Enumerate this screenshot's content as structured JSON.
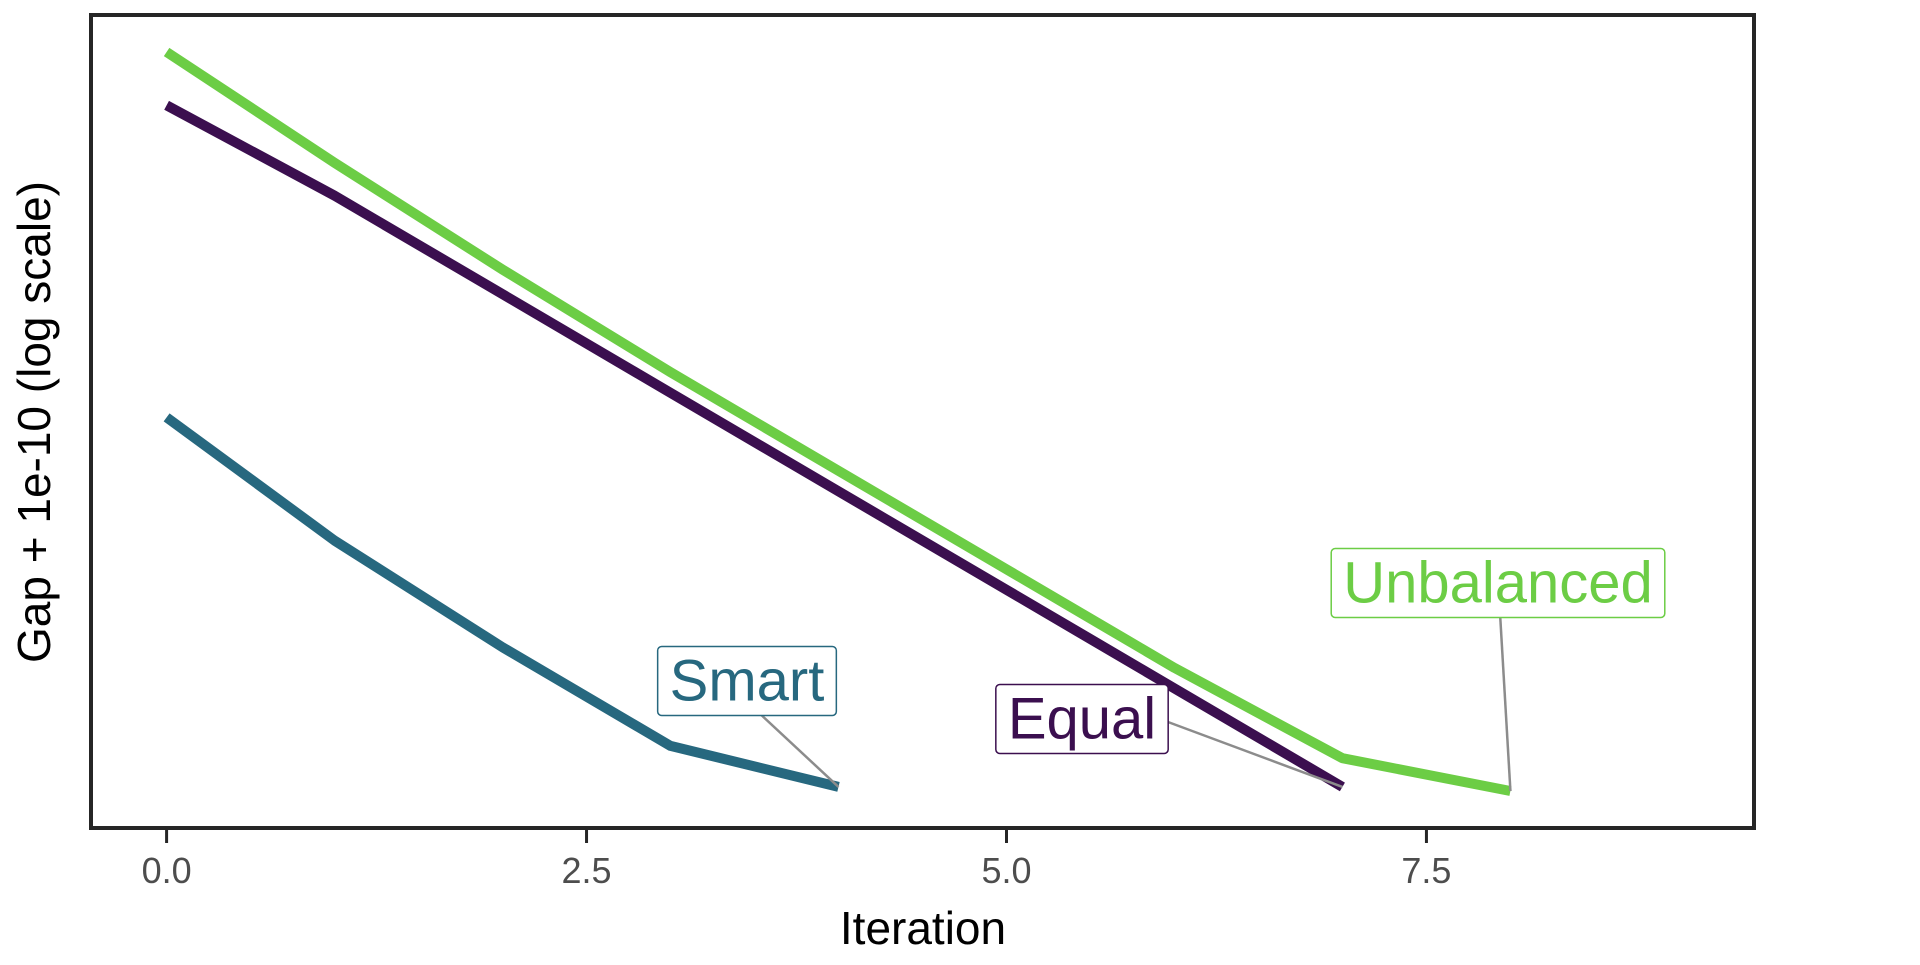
{
  "chart_data": {
    "type": "line",
    "title": "",
    "xlabel": "Iteration",
    "ylabel": "Gap + 1e-10 (log scale)",
    "log_y": true,
    "xlim": [
      -0.45,
      9.45
    ],
    "ylim_log10": [
      -10.0,
      -0.1
    ],
    "x_ticks": [
      0.0,
      2.5,
      5.0,
      7.5
    ],
    "x_tick_labels": [
      "0.0",
      "2.5",
      "5.0",
      "7.5"
    ],
    "y_tick_labels": [],
    "grid": false,
    "legend": "none",
    "series": [
      {
        "name": "Unbalanced",
        "color": "#6CCD45",
        "x": [
          0,
          1,
          2,
          3,
          4,
          5,
          6,
          7,
          8
        ],
        "y_log10": [
          -0.55,
          -1.9,
          -3.2,
          -4.45,
          -5.65,
          -6.85,
          -8.05,
          -9.15,
          -9.55
        ]
      },
      {
        "name": "Equal",
        "color": "#3B0F4F",
        "x": [
          0,
          1,
          2,
          3,
          4,
          5,
          6,
          7
        ],
        "y_log10": [
          -1.2,
          -2.3,
          -3.5,
          -4.7,
          -5.9,
          -7.1,
          -8.3,
          -9.5
        ]
      },
      {
        "name": "Smart",
        "color": "#27687F",
        "x": [
          0,
          1,
          2,
          3,
          4
        ],
        "y_log10": [
          -5.0,
          -6.5,
          -7.8,
          -9.0,
          -9.5
        ]
      }
    ],
    "annotations": [
      {
        "text": "Unbalanced",
        "color": "#6CCD45",
        "series": "Unbalanced"
      },
      {
        "text": "Equal",
        "color": "#3B0F4F",
        "series": "Equal"
      },
      {
        "text": "Smart",
        "color": "#27687F",
        "series": "Smart"
      }
    ]
  }
}
